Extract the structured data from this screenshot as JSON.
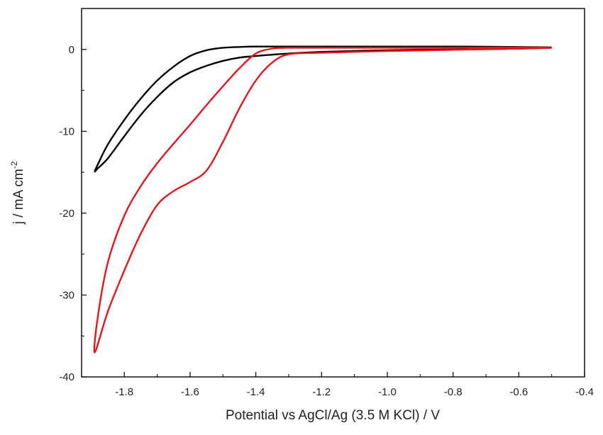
{
  "chart_data": {
    "type": "line",
    "xlabel": "Potential vs AgCl/Ag (3.5 M KCl) / V",
    "ylabel_base": "j / mA cm",
    "ylabel_sup": "-2",
    "xlim": [
      -1.93,
      -0.4
    ],
    "ylim": [
      -40,
      5
    ],
    "x_ticks": [
      -1.8,
      -1.6,
      -1.4,
      -1.2,
      -1.0,
      -0.8,
      -0.6,
      -0.4
    ],
    "x_tick_labels": [
      "-1.8",
      "-1.6",
      "-1.4",
      "-1.2",
      "-1.0",
      "-0.8",
      "-0.6",
      "-0.4"
    ],
    "y_ticks": [
      0,
      -10,
      -20,
      -30,
      -40
    ],
    "y_tick_labels": [
      "0",
      "-10",
      "-20",
      "-30",
      "-40"
    ],
    "grid": false,
    "legend": "none",
    "series": [
      {
        "color": "#000000",
        "x": [
          -0.5,
          -0.6,
          -0.8,
          -1.0,
          -1.2,
          -1.3,
          -1.4,
          -1.45,
          -1.5,
          -1.55,
          -1.6,
          -1.65,
          -1.7,
          -1.75,
          -1.8,
          -1.85,
          -1.88,
          -1.89,
          -1.88,
          -1.85,
          -1.8,
          -1.75,
          -1.7,
          -1.65,
          -1.6,
          -1.55,
          -1.5,
          -1.45,
          -1.4,
          -1.3,
          -1.2,
          -1.0,
          -0.8,
          -0.6,
          -0.5
        ],
        "y": [
          0.2,
          0.1,
          0.0,
          -0.1,
          -0.3,
          -0.5,
          -0.8,
          -1.0,
          -1.4,
          -2.0,
          -2.8,
          -4.0,
          -5.8,
          -8.0,
          -10.6,
          -13.3,
          -14.5,
          -14.9,
          -14.0,
          -11.6,
          -8.6,
          -6.0,
          -3.8,
          -2.1,
          -0.8,
          -0.1,
          0.2,
          0.3,
          0.35,
          0.35,
          0.35,
          0.35,
          0.35,
          0.3,
          0.25
        ]
      },
      {
        "color": "#e8141c",
        "x": [
          -0.5,
          -0.6,
          -0.8,
          -1.0,
          -1.2,
          -1.3,
          -1.35,
          -1.4,
          -1.45,
          -1.5,
          -1.55,
          -1.6,
          -1.65,
          -1.7,
          -1.75,
          -1.8,
          -1.85,
          -1.89,
          -1.88,
          -1.85,
          -1.8,
          -1.75,
          -1.7,
          -1.65,
          -1.6,
          -1.55,
          -1.5,
          -1.45,
          -1.4,
          -1.35,
          -1.3,
          -1.2,
          -1.0,
          -0.8,
          -0.6,
          -0.5
        ],
        "y": [
          0.2,
          0.1,
          -0.05,
          -0.2,
          -0.4,
          -0.6,
          -1.6,
          -3.8,
          -7.2,
          -11.3,
          -14.8,
          -16.2,
          -17.3,
          -19.0,
          -22.5,
          -27.0,
          -32.0,
          -37.0,
          -32.5,
          -26.0,
          -20.3,
          -16.7,
          -13.9,
          -11.5,
          -9.2,
          -6.8,
          -4.5,
          -2.3,
          -0.5,
          0.1,
          0.2,
          0.2,
          0.2,
          0.2,
          0.25,
          0.2
        ]
      }
    ]
  }
}
